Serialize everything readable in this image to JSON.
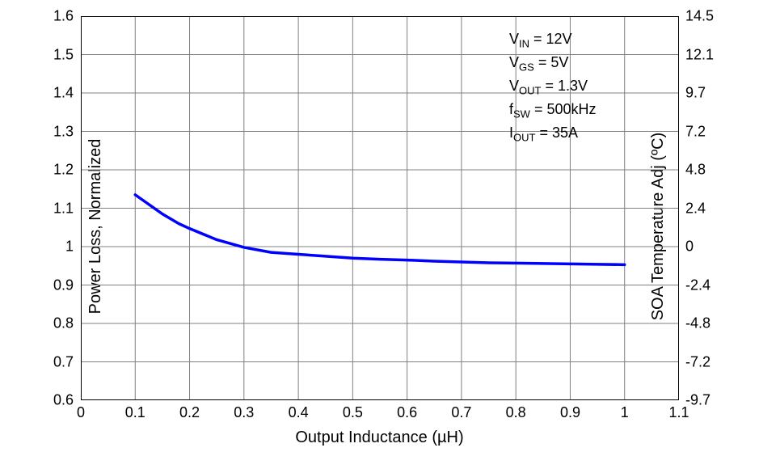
{
  "chart": {
    "type": "line",
    "background_color": "#ffffff",
    "border_color": "#000000",
    "border_width": 2,
    "grid_color": "#808080",
    "grid_width": 1,
    "x_axis": {
      "label": "Output Inductance (µH)",
      "min": 0,
      "max": 1.1,
      "tick_step": 0.1,
      "ticks": [
        "0",
        "0.1",
        "0.2",
        "0.3",
        "0.4",
        "0.5",
        "0.6",
        "0.7",
        "0.8",
        "0.9",
        "1",
        "1.1"
      ],
      "label_fontsize": 20,
      "tick_fontsize": 18
    },
    "y_axis_left": {
      "label": "Power Loss, Normalized",
      "min": 0.6,
      "max": 1.6,
      "tick_step": 0.1,
      "ticks": [
        "0.6",
        "0.7",
        "0.8",
        "0.9",
        "1",
        "1.1",
        "1.2",
        "1.3",
        "1.4",
        "1.5",
        "1.6"
      ],
      "label_fontsize": 20,
      "tick_fontsize": 18
    },
    "y_axis_right": {
      "label": "SOA Temperature Adj (ºC)",
      "min": -9.7,
      "max": 14.5,
      "ticks": [
        "-9.7",
        "-7.2",
        "-4.8",
        "-2.4",
        "0",
        "2.4",
        "4.8",
        "7.2",
        "9.7",
        "12.1",
        "14.5"
      ],
      "label_fontsize": 20,
      "tick_fontsize": 18
    },
    "series": {
      "color": "#0000ff",
      "width": 3.5,
      "data": [
        {
          "x": 0.1,
          "y": 1.135
        },
        {
          "x": 0.12,
          "y": 1.115
        },
        {
          "x": 0.15,
          "y": 1.085
        },
        {
          "x": 0.18,
          "y": 1.06
        },
        {
          "x": 0.2,
          "y": 1.047
        },
        {
          "x": 0.25,
          "y": 1.018
        },
        {
          "x": 0.3,
          "y": 0.998
        },
        {
          "x": 0.35,
          "y": 0.985
        },
        {
          "x": 0.4,
          "y": 0.98
        },
        {
          "x": 0.45,
          "y": 0.975
        },
        {
          "x": 0.5,
          "y": 0.97
        },
        {
          "x": 0.55,
          "y": 0.967
        },
        {
          "x": 0.6,
          "y": 0.965
        },
        {
          "x": 0.65,
          "y": 0.962
        },
        {
          "x": 0.7,
          "y": 0.96
        },
        {
          "x": 0.75,
          "y": 0.958
        },
        {
          "x": 0.8,
          "y": 0.957
        },
        {
          "x": 0.85,
          "y": 0.956
        },
        {
          "x": 0.9,
          "y": 0.955
        },
        {
          "x": 0.95,
          "y": 0.954
        },
        {
          "x": 1.0,
          "y": 0.953
        }
      ]
    },
    "annotations": {
      "vin": {
        "label": "V",
        "sub": "IN",
        "value": " = 12V"
      },
      "vgs": {
        "label": "V",
        "sub": "GS",
        "value": " = 5V"
      },
      "vout": {
        "label": "V",
        "sub": "OUT",
        "value": " = 1.3V"
      },
      "fsw": {
        "label": "f",
        "sub": "SW",
        "value": " = 500kHz"
      },
      "iout": {
        "label": "I",
        "sub": "OUT",
        "value": " = 35A"
      }
    }
  }
}
